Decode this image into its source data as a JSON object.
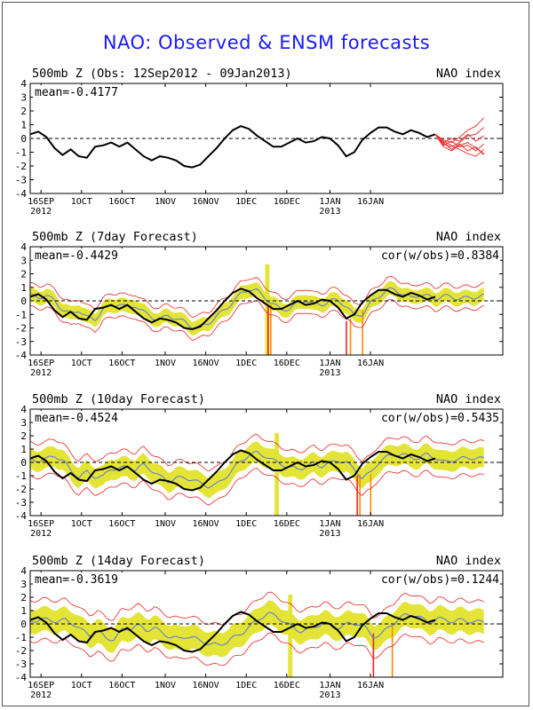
{
  "title": "NAO: Observed & ENSM forecasts",
  "colors": {
    "title": "#1a1aff",
    "obs": "#000000",
    "ensmean": "#5577dd",
    "spread": "#e4e436",
    "member": "#ee2222",
    "fcst_member": "#ee3333",
    "bar_red": "#ee2222",
    "bar_orange": "#ff8800",
    "zero": "#000000"
  },
  "chart_data": [
    {
      "type": "line",
      "header_left": "500mb Z (Obs: 12Sep2012 - 09Jan2013)",
      "header_right": "NAO index",
      "mean_label": "mean=-0.4177",
      "cor_label": "",
      "ylim": [
        -4,
        4
      ],
      "yticks": [
        "-4",
        "-3",
        "-2",
        "-1",
        "0",
        "1",
        "2",
        "3",
        "4"
      ],
      "xtick_labels": [
        [
          "16SEP",
          "2012"
        ],
        [
          "1OCT",
          ""
        ],
        [
          "16OCT",
          ""
        ],
        [
          "1NOV",
          ""
        ],
        [
          "16NOV",
          ""
        ],
        [
          "1DEC",
          ""
        ],
        [
          "16DEC",
          ""
        ],
        [
          "1JAN",
          "2013"
        ],
        [
          "16JAN",
          ""
        ]
      ],
      "x_unit": "days since 12Sep2012",
      "obs": [
        [
          0,
          0.3
        ],
        [
          3,
          0.5
        ],
        [
          6,
          0.1
        ],
        [
          9,
          -0.7
        ],
        [
          12,
          -1.2
        ],
        [
          15,
          -0.8
        ],
        [
          18,
          -1.3
        ],
        [
          21,
          -1.4
        ],
        [
          24,
          -0.6
        ],
        [
          27,
          -0.5
        ],
        [
          30,
          -0.3
        ],
        [
          33,
          -0.6
        ],
        [
          36,
          -0.3
        ],
        [
          39,
          -0.8
        ],
        [
          42,
          -1.3
        ],
        [
          45,
          -1.6
        ],
        [
          48,
          -1.3
        ],
        [
          51,
          -1.4
        ],
        [
          54,
          -1.6
        ],
        [
          57,
          -2.0
        ],
        [
          60,
          -2.1
        ],
        [
          63,
          -1.9
        ],
        [
          66,
          -1.3
        ],
        [
          69,
          -0.7
        ],
        [
          72,
          0.0
        ],
        [
          75,
          0.6
        ],
        [
          78,
          0.9
        ],
        [
          81,
          0.7
        ],
        [
          84,
          0.2
        ],
        [
          87,
          -0.2
        ],
        [
          90,
          -0.6
        ],
        [
          93,
          -0.6
        ],
        [
          96,
          -0.3
        ],
        [
          99,
          0.0
        ],
        [
          102,
          -0.3
        ],
        [
          105,
          -0.2
        ],
        [
          108,
          0.1
        ],
        [
          111,
          0.0
        ],
        [
          114,
          -0.5
        ],
        [
          117,
          -1.3
        ],
        [
          120,
          -1.0
        ],
        [
          123,
          -0.1
        ],
        [
          126,
          0.4
        ],
        [
          129,
          0.8
        ],
        [
          132,
          0.8
        ],
        [
          135,
          0.5
        ],
        [
          138,
          0.3
        ],
        [
          141,
          0.6
        ],
        [
          144,
          0.4
        ],
        [
          147,
          0.1
        ],
        [
          150,
          0.3
        ]
      ],
      "forecast_members": [
        [
          [
            150,
            0.3
          ],
          [
            153,
            -0.3
          ],
          [
            156,
            -0.8
          ],
          [
            159,
            -0.4
          ],
          [
            162,
            -0.9
          ],
          [
            165,
            -0.6
          ],
          [
            168,
            -1.2
          ]
        ],
        [
          [
            150,
            0.3
          ],
          [
            153,
            -0.1
          ],
          [
            156,
            -0.3
          ],
          [
            159,
            0.1
          ],
          [
            162,
            0.6
          ],
          [
            165,
            0.9
          ],
          [
            168,
            1.5
          ]
        ],
        [
          [
            150,
            0.3
          ],
          [
            153,
            -0.4
          ],
          [
            156,
            -0.6
          ],
          [
            159,
            -0.3
          ],
          [
            162,
            0.2
          ],
          [
            165,
            0.3
          ],
          [
            168,
            0.8
          ]
        ],
        [
          [
            150,
            0.3
          ],
          [
            153,
            -0.5
          ],
          [
            156,
            -0.2
          ],
          [
            159,
            -0.6
          ],
          [
            162,
            -0.5
          ],
          [
            165,
            -0.9
          ],
          [
            168,
            -0.4
          ]
        ],
        [
          [
            150,
            0.3
          ],
          [
            153,
            -0.2
          ],
          [
            156,
            -0.5
          ],
          [
            159,
            -0.8
          ],
          [
            162,
            -1.1
          ],
          [
            165,
            -1.3
          ],
          [
            168,
            -0.8
          ]
        ],
        [
          [
            150,
            0.3
          ],
          [
            153,
            -0.6
          ],
          [
            156,
            -0.9
          ],
          [
            159,
            -0.5
          ],
          [
            162,
            -0.3
          ],
          [
            165,
            -0.7
          ],
          [
            168,
            -1.1
          ]
        ],
        [
          [
            150,
            0.3
          ],
          [
            153,
            -0.3
          ],
          [
            156,
            0.0
          ],
          [
            159,
            -0.2
          ],
          [
            162,
            0.3
          ],
          [
            165,
            -0.2
          ],
          [
            168,
            0.2
          ]
        ]
      ]
    },
    {
      "type": "line",
      "header_left": "500mb Z (7day Forecast)",
      "header_right": "NAO index",
      "mean_label": "mean=-0.4429",
      "cor_label": "cor(w/obs)=0.8384",
      "ylim": [
        -4,
        4
      ],
      "yticks": [
        "-4",
        "-3",
        "-2",
        "-1",
        "0",
        "1",
        "2",
        "3",
        "4"
      ],
      "xtick_labels": [
        [
          "16SEP",
          "2012"
        ],
        [
          "1OCT",
          ""
        ],
        [
          "16OCT",
          ""
        ],
        [
          "1NOV",
          ""
        ],
        [
          "16NOV",
          ""
        ],
        [
          "1DEC",
          ""
        ],
        [
          "16DEC",
          ""
        ],
        [
          "1JAN",
          "2013"
        ],
        [
          "16JAN",
          ""
        ]
      ],
      "lead": 3,
      "spread": 0.5,
      "bars": [
        {
          "x": 87.5,
          "ymin": -4,
          "ymax": 2.7,
          "w": 3,
          "color": "spread"
        },
        {
          "x": 88,
          "ymin": -4,
          "ymax": -0.3,
          "w": 1,
          "color": "bar_red"
        },
        {
          "x": 89,
          "ymin": -4,
          "ymax": -0.3,
          "w": 1,
          "color": "bar_orange"
        },
        {
          "x": 117,
          "ymin": -4,
          "ymax": -1.5,
          "w": 1,
          "color": "bar_red"
        },
        {
          "x": 118.5,
          "ymin": -4,
          "ymax": -1.3,
          "w": 1,
          "color": "bar_orange"
        },
        {
          "x": 123,
          "ymin": -4,
          "ymax": -0.7,
          "w": 1,
          "color": "bar_orange"
        }
      ]
    },
    {
      "type": "line",
      "header_left": "500mb Z (10day Forecast)",
      "header_right": "NAO index",
      "mean_label": "mean=-0.4524",
      "cor_label": "cor(w/obs)=0.5435",
      "ylim": [
        -4,
        4
      ],
      "yticks": [
        "-4",
        "-3",
        "-2",
        "-1",
        "0",
        "1",
        "2",
        "3",
        "4"
      ],
      "xtick_labels": [
        [
          "16SEP",
          "2012"
        ],
        [
          "1OCT",
          ""
        ],
        [
          "16OCT",
          ""
        ],
        [
          "1NOV",
          ""
        ],
        [
          "16NOV",
          ""
        ],
        [
          "1DEC",
          ""
        ],
        [
          "16DEC",
          ""
        ],
        [
          "1JAN",
          "2013"
        ],
        [
          "16JAN",
          ""
        ]
      ],
      "lead": 6,
      "spread": 0.75,
      "bars": [
        {
          "x": 91,
          "ymin": -4,
          "ymax": 2.2,
          "w": 3,
          "color": "spread"
        },
        {
          "x": 121,
          "ymin": -4,
          "ymax": -1.0,
          "w": 1,
          "color": "bar_red"
        },
        {
          "x": 122,
          "ymin": -4,
          "ymax": -0.9,
          "w": 1,
          "color": "bar_orange"
        },
        {
          "x": 126,
          "ymin": -4,
          "ymax": -0.9,
          "w": 1,
          "color": "bar_orange"
        }
      ]
    },
    {
      "type": "line",
      "header_left": "500mb Z (14day Forecast)",
      "header_right": "NAO index",
      "mean_label": "mean=-0.3619",
      "cor_label": "cor(w/obs)=0.1244",
      "ylim": [
        -4,
        4
      ],
      "yticks": [
        "-4",
        "-3",
        "-2",
        "-1",
        "0",
        "1",
        "2",
        "3",
        "4"
      ],
      "xtick_labels": [
        [
          "16SEP",
          "2012"
        ],
        [
          "1OCT",
          ""
        ],
        [
          "16OCT",
          ""
        ],
        [
          "1NOV",
          ""
        ],
        [
          "16NOV",
          ""
        ],
        [
          "1DEC",
          ""
        ],
        [
          "16DEC",
          ""
        ],
        [
          "1JAN",
          "2013"
        ],
        [
          "16JAN",
          ""
        ]
      ],
      "lead": 10,
      "spread": 0.9,
      "bars": [
        {
          "x": 96,
          "ymin": -4,
          "ymax": 2.2,
          "w": 3,
          "color": "spread"
        },
        {
          "x": 127,
          "ymin": -4,
          "ymax": -0.7,
          "w": 1,
          "color": "bar_red"
        },
        {
          "x": 134,
          "ymin": -4,
          "ymax": -0.2,
          "w": 1,
          "color": "bar_orange"
        }
      ]
    }
  ]
}
